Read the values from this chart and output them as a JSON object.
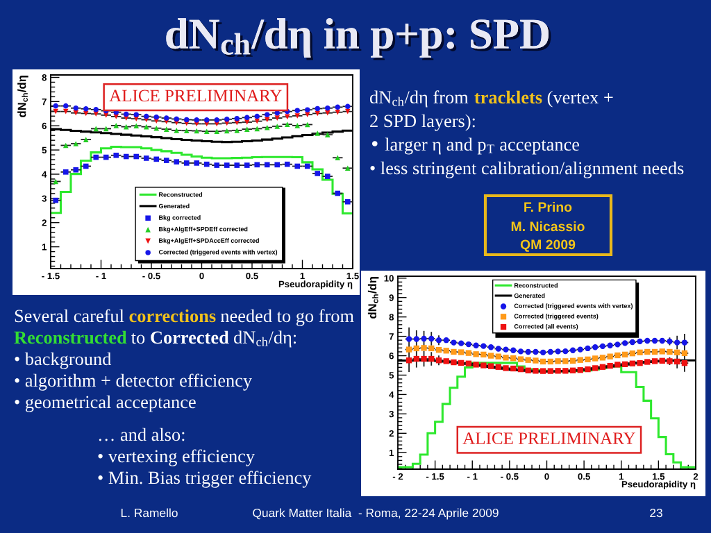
{
  "chart_data": [
    {
      "type": "other",
      "title": "dN$_{ch}$/dη in p+p: SPD",
      "annotations": [
        "dN$_{ch}$/dη from",
        "tracklets",
        "(vertex +",
        "2 SPD layers):",
        "• larger η and p$_{T}$ acceptance",
        "• less stringent calibration/alignment needs",
        "F. Prino",
        "M. Nicassio",
        "QM 2009",
        "Several careful",
        "corrections",
        "needed to go from",
        "Reconstructed",
        "to",
        "Corrected",
        "dN$_{ch}$/dη:",
        "• background",
        "• algorithm + detector efficiency",
        "• geometrical acceptance",
        "… and also:",
        "• vertexing efficiency",
        "• Min. Bias trigger efficiency",
        "L. Ramello",
        "Quark Matter Italia  - Roma, 22-24 Aprile 2009",
        "23"
      ]
    },
    {
      "type": "scatter",
      "xlabel": "Pseudorapidity η",
      "ylabel": "dN$_{ch}$/dη",
      "x": [
        -1.45,
        -1.35,
        -1.25,
        -1.15,
        -1.05,
        -0.95,
        -0.85,
        -0.75,
        -0.65,
        -0.55,
        -0.45,
        -0.35,
        -0.25,
        -0.15,
        -0.05,
        0.05,
        0.15,
        0.25,
        0.35,
        0.45,
        0.55,
        0.65,
        0.75,
        0.85,
        0.95,
        1.05,
        1.15,
        1.25,
        1.35,
        1.45
      ],
      "bins": [
        -1.5,
        -1.4,
        -1.3,
        -1.2,
        -1.1,
        -1.0,
        -0.9,
        -0.8,
        -0.7,
        -0.6,
        -0.5,
        -0.4,
        -0.3,
        -0.2,
        -0.1,
        0,
        0.1,
        0.2,
        0.3,
        0.4,
        0.5,
        0.6,
        0.7,
        0.8,
        0.9,
        1.0,
        1.1,
        1.2,
        1.3,
        1.4,
        1.5
      ],
      "xlim": [
        -1.5,
        1.5
      ],
      "xticks": [
        {
          "value": -1.5,
          "label": "- 1.5"
        },
        {
          "value": -1,
          "label": "- 1"
        },
        {
          "value": -0.5,
          "label": "- 0.5"
        },
        0,
        0.5,
        1,
        1.5
      ],
      "ylim": [
        0.1,
        8.1
      ],
      "yticks": [
        1,
        2,
        3,
        4,
        5,
        6,
        7,
        8
      ],
      "legend": "bottom",
      "annotations": [
        "ALICE PRELIMINARY"
      ],
      "series": [
        {
          "name": "Reconstructed",
          "type": "histogram",
          "color": "#2ee82e",
          "values": [
            2.4,
            3.27,
            4.01,
            4.56,
            4.9,
            5.07,
            5.13,
            5.12,
            5.12,
            5.07,
            5.0,
            4.95,
            4.88,
            4.8,
            4.73,
            4.68,
            4.66,
            4.66,
            4.67,
            4.68,
            4.7,
            4.71,
            4.71,
            4.71,
            4.7,
            4.49,
            4.2,
            3.77,
            3.19,
            2.38
          ]
        },
        {
          "name": "Generated",
          "type": "histogram",
          "color": "#000000",
          "values": [
            5.86,
            5.83,
            5.79,
            5.76,
            5.73,
            5.7,
            5.66,
            5.63,
            5.6,
            5.56,
            5.53,
            5.49,
            5.45,
            5.42,
            5.39,
            5.36,
            5.34,
            5.33,
            5.34,
            5.36,
            5.39,
            5.43,
            5.47,
            5.52,
            5.57,
            5.62,
            5.67,
            5.72,
            5.76,
            5.8
          ]
        },
        {
          "name": "Bkg corrected",
          "type": "scatter",
          "marker": "square",
          "color": "#1616e8",
          "values": [
            2.92,
            4.09,
            4.18,
            4.33,
            4.7,
            4.7,
            4.78,
            4.73,
            4.73,
            4.66,
            4.62,
            4.57,
            4.51,
            4.46,
            4.46,
            4.41,
            4.37,
            4.37,
            4.37,
            4.37,
            4.39,
            4.39,
            4.39,
            4.41,
            4.33,
            4.33,
            4.03,
            3.91,
            3.21,
            2.86
          ],
          "xerrors": [
            0.05,
            0.05,
            0.05,
            0.05,
            0.05,
            0.05,
            0.05,
            0.05,
            0.05,
            0.05,
            0.05,
            0.05,
            0.05,
            0.05,
            0.05,
            0.05,
            0.05,
            0.05,
            0.05,
            0.05,
            0.05,
            0.05,
            0.05,
            0.05,
            0.05,
            0.05,
            0.05,
            0.05,
            0.05,
            0.05
          ]
        },
        {
          "name": "Bkg+AlgEff+SPDEff corrected",
          "type": "scatter",
          "marker": "triangle",
          "color": "#22cc22",
          "values": [
            3.7,
            5.19,
            5.26,
            5.43,
            5.88,
            5.88,
            6.01,
            5.96,
            6.0,
            5.96,
            5.9,
            5.86,
            5.81,
            5.8,
            5.79,
            5.77,
            5.77,
            5.79,
            5.81,
            5.86,
            5.88,
            5.93,
            5.98,
            6.06,
            6.01,
            6.05,
            5.69,
            5.63,
            4.68,
            4.25
          ],
          "xerrors": [
            0.05,
            0.05,
            0.05,
            0.05,
            0.05,
            0.05,
            0.05,
            0.05,
            0.05,
            0.05,
            0.05,
            0.05,
            0.05,
            0.05,
            0.05,
            0.05,
            0.05,
            0.05,
            0.05,
            0.05,
            0.05,
            0.05,
            0.05,
            0.05,
            0.05,
            0.05,
            0.05,
            0.05,
            0.05,
            0.05
          ]
        },
        {
          "name": "Bkg+AlgEff+SPDAccEff corrected",
          "type": "scatter",
          "marker": "triangle_down",
          "color": "#ee1111",
          "values": [
            6.59,
            6.59,
            6.53,
            6.51,
            6.49,
            6.44,
            6.38,
            6.32,
            6.29,
            6.25,
            6.2,
            6.17,
            6.13,
            6.1,
            6.08,
            6.08,
            6.08,
            6.11,
            6.13,
            6.15,
            6.19,
            6.25,
            6.32,
            6.37,
            6.41,
            6.46,
            6.51,
            6.53,
            6.56,
            6.59
          ],
          "xerrors": [
            0.05,
            0.05,
            0.05,
            0.05,
            0.05,
            0.05,
            0.05,
            0.05,
            0.05,
            0.05,
            0.05,
            0.05,
            0.05,
            0.05,
            0.05,
            0.05,
            0.05,
            0.05,
            0.05,
            0.05,
            0.05,
            0.05,
            0.05,
            0.05,
            0.05,
            0.05,
            0.05,
            0.05,
            0.05,
            0.05
          ]
        },
        {
          "name": "Corrected (triggered events with vertex)",
          "type": "scatter",
          "marker": "circle",
          "color": "#1616e8",
          "values": [
            6.82,
            6.82,
            6.73,
            6.7,
            6.67,
            6.62,
            6.56,
            6.48,
            6.46,
            6.39,
            6.36,
            6.32,
            6.28,
            6.25,
            6.24,
            6.24,
            6.24,
            6.27,
            6.3,
            6.34,
            6.39,
            6.46,
            6.53,
            6.59,
            6.63,
            6.66,
            6.71,
            6.73,
            6.77,
            6.8
          ],
          "xerrors": [
            0.05,
            0.05,
            0.05,
            0.05,
            0.05,
            0.05,
            0.05,
            0.05,
            0.05,
            0.05,
            0.05,
            0.05,
            0.05,
            0.05,
            0.05,
            0.05,
            0.05,
            0.05,
            0.05,
            0.05,
            0.05,
            0.05,
            0.05,
            0.05,
            0.05,
            0.05,
            0.05,
            0.05,
            0.05,
            0.05
          ]
        }
      ]
    },
    {
      "type": "scatter",
      "xlabel": "Pseudorapidity η",
      "ylabel": "dN$_{ch}$/dη",
      "x": [
        -1.85,
        -1.75,
        -1.65,
        -1.55,
        -1.45,
        -1.35,
        -1.25,
        -1.15,
        -1.05,
        -0.95,
        -0.85,
        -0.75,
        -0.65,
        -0.55,
        -0.45,
        -0.35,
        -0.25,
        -0.15,
        -0.05,
        0.05,
        0.15,
        0.25,
        0.35,
        0.45,
        0.55,
        0.65,
        0.75,
        0.85,
        0.95,
        1.05,
        1.15,
        1.25,
        1.35,
        1.45,
        1.55,
        1.65,
        1.75,
        1.85
      ],
      "bins": [
        -2.0,
        -1.9,
        -1.8,
        -1.7,
        -1.6,
        -1.5,
        -1.4,
        -1.3,
        -1.2,
        -1.1,
        -1.0,
        -0.9,
        -0.8,
        -0.7,
        -0.6,
        -0.5,
        -0.4,
        -0.3,
        -0.2,
        -0.1,
        0,
        0.1,
        0.2,
        0.3,
        0.4,
        0.5,
        0.6,
        0.7,
        0.8,
        0.9,
        1.0,
        1.1,
        1.2,
        1.3,
        1.4,
        1.5,
        1.6,
        1.7,
        1.8,
        1.9,
        2.0
      ],
      "xlim": [
        -2,
        2
      ],
      "xticks": [
        {
          "value": -2,
          "label": "- 2"
        },
        {
          "value": -1.5,
          "label": "- 1.5"
        },
        {
          "value": -1,
          "label": "- 1"
        },
        {
          "value": -0.5,
          "label": "- 0.5"
        },
        0,
        0.5,
        1,
        1.5,
        2
      ],
      "ylim": [
        0.15,
        10.1
      ],
      "yticks": [
        1,
        2,
        3,
        4,
        5,
        6,
        7,
        8,
        9,
        10
      ],
      "legend": "top",
      "annotations": [
        "ALICE PRELIMINARY"
      ],
      "series": [
        {
          "name": "Reconstructed",
          "type": "histogram",
          "color": "#2ee82e",
          "values": [
            0.25,
            0.25,
            0.43,
            0.9,
            2.0,
            2.59,
            3.51,
            4.35,
            4.92,
            5.39,
            5.63,
            5.63,
            5.63,
            5.63,
            5.63,
            5.63,
            5.45,
            5.3,
            5.25,
            5.22,
            5.2,
            5.2,
            5.2,
            5.21,
            5.22,
            5.24,
            5.3,
            5.37,
            5.45,
            5.45,
            5.15,
            5.15,
            4.39,
            3.68,
            2.77,
            1.81,
            0.92,
            0.5,
            0.25,
            0.25
          ]
        },
        {
          "name": "Generated",
          "type": "histogram",
          "color": "#000000",
          "values": [
            5.75,
            5.75,
            5.76,
            5.76,
            5.75,
            5.73,
            5.7,
            5.66,
            5.62,
            5.58,
            5.53,
            5.48,
            5.43,
            5.38,
            5.33,
            5.28,
            5.25,
            5.22,
            5.2,
            5.19,
            5.19,
            5.2,
            5.21,
            5.23,
            5.26,
            5.3,
            5.35,
            5.4,
            5.45,
            5.5,
            5.55,
            5.6,
            5.64,
            5.68,
            5.71,
            5.73,
            5.75,
            5.76,
            5.76,
            5.76
          ]
        },
        {
          "name": "Corrected (triggered events with vertex)",
          "type": "scatter",
          "marker": "circle",
          "color": "#1616e8",
          "values": [
            6.86,
            6.86,
            6.88,
            6.88,
            6.8,
            6.8,
            6.68,
            6.64,
            6.59,
            6.53,
            6.5,
            6.44,
            6.36,
            6.32,
            6.28,
            6.22,
            6.2,
            6.2,
            6.17,
            6.2,
            6.22,
            6.23,
            6.28,
            6.32,
            6.38,
            6.44,
            6.49,
            6.53,
            6.58,
            6.65,
            6.7,
            6.74,
            6.77,
            6.77,
            6.77,
            6.74,
            6.68,
            6.68
          ],
          "errors": [
            0.6,
            0.45,
            0.4,
            0.35,
            0.25,
            null,
            null,
            null,
            null,
            null,
            null,
            null,
            null,
            null,
            null,
            null,
            null,
            null,
            null,
            null,
            null,
            null,
            null,
            null,
            null,
            null,
            null,
            null,
            null,
            null,
            null,
            null,
            null,
            null,
            null,
            0.2,
            0.35,
            0.45
          ],
          "xerrors": [
            0.05,
            0.05,
            0.05,
            0.05,
            0.05,
            0.05,
            0.05,
            0.05,
            0.05,
            0.05,
            0.05,
            0.05,
            0.05,
            0.05,
            0.05,
            0.05,
            0.05,
            0.05,
            0.05,
            0.05,
            0.05,
            0.05,
            0.05,
            0.05,
            0.05,
            0.05,
            0.05,
            0.05,
            0.05,
            0.05,
            0.05,
            0.05,
            0.05,
            0.05,
            0.05,
            0.05,
            0.05,
            0.05
          ]
        },
        {
          "name": "Corrected (triggered events)",
          "type": "scatter",
          "marker": "square",
          "color": "#ff9a1a",
          "values": [
            6.32,
            6.38,
            6.4,
            6.38,
            6.3,
            6.26,
            6.2,
            6.18,
            6.14,
            6.08,
            6.06,
            6.0,
            5.96,
            5.9,
            5.87,
            5.82,
            5.78,
            5.75,
            5.7,
            5.7,
            5.72,
            5.72,
            5.74,
            5.78,
            5.81,
            5.86,
            5.9,
            5.96,
            6.02,
            6.06,
            6.12,
            6.17,
            6.2,
            6.2,
            6.22,
            6.2,
            6.17,
            6.13
          ],
          "xerrors": [
            0.05,
            0.05,
            0.05,
            0.05,
            0.05,
            0.05,
            0.05,
            0.05,
            0.05,
            0.05,
            0.05,
            0.05,
            0.05,
            0.05,
            0.05,
            0.05,
            0.05,
            0.05,
            0.05,
            0.05,
            0.05,
            0.05,
            0.05,
            0.05,
            0.05,
            0.05,
            0.05,
            0.05,
            0.05,
            0.05,
            0.05,
            0.05,
            0.05,
            0.05,
            0.05,
            0.05,
            0.05,
            0.05
          ]
        },
        {
          "name": "Corrected (all events)",
          "type": "scatter",
          "marker": "square",
          "color": "#ee1111",
          "values": [
            5.76,
            5.84,
            5.84,
            5.84,
            5.76,
            5.72,
            5.66,
            5.63,
            5.6,
            5.54,
            5.5,
            5.46,
            5.42,
            5.36,
            5.34,
            5.3,
            5.24,
            5.22,
            5.21,
            5.21,
            5.22,
            5.22,
            5.24,
            5.26,
            5.3,
            5.36,
            5.42,
            5.48,
            5.54,
            5.56,
            5.6,
            5.62,
            5.68,
            5.72,
            5.74,
            5.72,
            5.7,
            5.62
          ],
          "errors": [
            0.6,
            0.45,
            0.4,
            0.35,
            0.25,
            null,
            null,
            null,
            null,
            null,
            null,
            null,
            null,
            null,
            null,
            null,
            null,
            null,
            null,
            null,
            null,
            null,
            null,
            null,
            null,
            null,
            null,
            null,
            null,
            null,
            null,
            null,
            null,
            null,
            null,
            0.2,
            0.35,
            0.45
          ],
          "xerrors": [
            0.05,
            0.05,
            0.05,
            0.05,
            0.05,
            0.05,
            0.05,
            0.05,
            0.05,
            0.05,
            0.05,
            0.05,
            0.05,
            0.05,
            0.05,
            0.05,
            0.05,
            0.05,
            0.05,
            0.05,
            0.05,
            0.05,
            0.05,
            0.05,
            0.05,
            0.05,
            0.05,
            0.05,
            0.05,
            0.05,
            0.05,
            0.05,
            0.05,
            0.05,
            0.05,
            0.05,
            0.05,
            0.05
          ]
        }
      ]
    }
  ]
}
